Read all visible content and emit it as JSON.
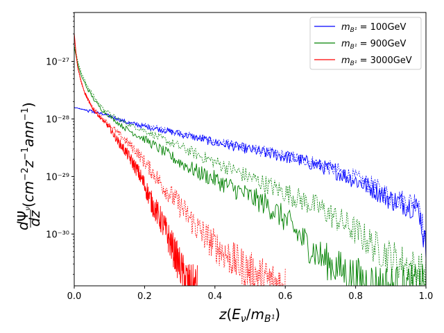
{
  "chart_data": {
    "type": "line",
    "title": "",
    "xlabel": "z(E_ν/m_{B^1})",
    "ylabel": "dΨ_ν/dz (cm^{-2} z^{-1} ann^{-1})",
    "xlim": [
      0.0,
      1.0
    ],
    "ylim_log10": [
      -30.9,
      -26.15
    ],
    "yscale": "log",
    "x_ticks": [
      {
        "value": 0.0,
        "label": "0.0"
      },
      {
        "value": 0.2,
        "label": "0.2"
      },
      {
        "value": 0.4,
        "label": "0.4"
      },
      {
        "value": 0.6,
        "label": "0.6"
      },
      {
        "value": 0.8,
        "label": "0.8"
      },
      {
        "value": 1.0,
        "label": "1.0"
      }
    ],
    "y_ticks": [
      {
        "exp": -27,
        "label": "10⁻²⁷"
      },
      {
        "exp": -28,
        "label": "10⁻²⁸"
      },
      {
        "exp": -29,
        "label": "10⁻²⁹"
      },
      {
        "exp": -30,
        "label": "10⁻³⁰"
      }
    ],
    "legend_position": "top-right",
    "series": [
      {
        "name": "m_{B^1} = 100GeV",
        "label_prefix": "m",
        "label_sub": "B¹",
        "label_suffix": " = 100GeV",
        "color": "#0000ff",
        "solid_log10": [
          [
            0.0,
            -27.8
          ],
          [
            0.05,
            -27.87
          ],
          [
            0.1,
            -27.95
          ],
          [
            0.15,
            -28.06
          ],
          [
            0.2,
            -28.13
          ],
          [
            0.25,
            -28.19
          ],
          [
            0.3,
            -28.26
          ],
          [
            0.35,
            -28.33
          ],
          [
            0.4,
            -28.41
          ],
          [
            0.45,
            -28.47
          ],
          [
            0.5,
            -28.53
          ],
          [
            0.55,
            -28.6
          ],
          [
            0.6,
            -28.66
          ],
          [
            0.65,
            -28.73
          ],
          [
            0.7,
            -28.82
          ],
          [
            0.75,
            -28.93
          ],
          [
            0.8,
            -29.07
          ],
          [
            0.85,
            -29.22
          ],
          [
            0.9,
            -29.4
          ],
          [
            0.95,
            -29.5
          ],
          [
            0.98,
            -29.55
          ],
          [
            1.0,
            -30.3
          ]
        ],
        "dashed_log10": [
          [
            0.0,
            -27.8
          ],
          [
            0.05,
            -27.87
          ],
          [
            0.1,
            -27.94
          ],
          [
            0.15,
            -28.05
          ],
          [
            0.2,
            -28.12
          ],
          [
            0.25,
            -28.18
          ],
          [
            0.3,
            -28.25
          ],
          [
            0.35,
            -28.31
          ],
          [
            0.4,
            -28.39
          ],
          [
            0.45,
            -28.45
          ],
          [
            0.5,
            -28.52
          ],
          [
            0.55,
            -28.58
          ],
          [
            0.6,
            -28.64
          ],
          [
            0.65,
            -28.7
          ],
          [
            0.7,
            -28.79
          ],
          [
            0.75,
            -28.9
          ],
          [
            0.8,
            -29.03
          ],
          [
            0.85,
            -29.17
          ],
          [
            0.9,
            -29.35
          ],
          [
            0.95,
            -29.45
          ],
          [
            0.98,
            -29.4
          ],
          [
            1.0,
            -30.3
          ]
        ]
      },
      {
        "name": "m_{B^1} = 900GeV",
        "label_prefix": "m",
        "label_sub": "B¹",
        "label_suffix": " = 900GeV",
        "color": "#008000",
        "solid_log10": [
          [
            0.0,
            -26.75
          ],
          [
            0.01,
            -27.05
          ],
          [
            0.02,
            -27.25
          ],
          [
            0.04,
            -27.5
          ],
          [
            0.06,
            -27.7
          ],
          [
            0.08,
            -27.85
          ],
          [
            0.1,
            -27.95
          ],
          [
            0.12,
            -28.05
          ],
          [
            0.15,
            -28.18
          ],
          [
            0.2,
            -28.35
          ],
          [
            0.25,
            -28.55
          ],
          [
            0.3,
            -28.75
          ],
          [
            0.35,
            -28.92
          ],
          [
            0.4,
            -29.05
          ],
          [
            0.45,
            -29.2
          ],
          [
            0.5,
            -29.35
          ],
          [
            0.55,
            -29.5
          ],
          [
            0.6,
            -29.75
          ],
          [
            0.65,
            -30.1
          ],
          [
            0.7,
            -30.4
          ],
          [
            0.75,
            -30.6
          ],
          [
            0.8,
            -30.75
          ],
          [
            0.85,
            -30.85
          ],
          [
            0.9,
            -30.9
          ],
          [
            1.0,
            -30.9
          ]
        ],
        "dashed_log10": [
          [
            0.0,
            -26.7
          ],
          [
            0.01,
            -27.0
          ],
          [
            0.02,
            -27.2
          ],
          [
            0.04,
            -27.45
          ],
          [
            0.06,
            -27.65
          ],
          [
            0.08,
            -27.8
          ],
          [
            0.1,
            -27.9
          ],
          [
            0.12,
            -27.98
          ],
          [
            0.15,
            -28.08
          ],
          [
            0.2,
            -28.2
          ],
          [
            0.25,
            -28.35
          ],
          [
            0.3,
            -28.48
          ],
          [
            0.35,
            -28.62
          ],
          [
            0.4,
            -28.75
          ],
          [
            0.45,
            -28.88
          ],
          [
            0.5,
            -29.02
          ],
          [
            0.55,
            -29.15
          ],
          [
            0.6,
            -29.28
          ],
          [
            0.65,
            -29.42
          ],
          [
            0.7,
            -29.55
          ],
          [
            0.75,
            -29.75
          ],
          [
            0.8,
            -29.95
          ],
          [
            0.85,
            -30.2
          ],
          [
            0.9,
            -30.4
          ],
          [
            0.95,
            -30.55
          ],
          [
            1.0,
            -30.7
          ]
        ]
      },
      {
        "name": "m_{B^1} = 3000GeV",
        "label_prefix": "m",
        "label_sub": "B¹",
        "label_suffix": " = 3000GeV",
        "color": "#ff0000",
        "solid_log10": [
          [
            0.0,
            -26.5
          ],
          [
            0.005,
            -26.85
          ],
          [
            0.01,
            -27.1
          ],
          [
            0.02,
            -27.35
          ],
          [
            0.03,
            -27.55
          ],
          [
            0.05,
            -27.8
          ],
          [
            0.07,
            -27.95
          ],
          [
            0.1,
            -28.15
          ],
          [
            0.12,
            -28.35
          ],
          [
            0.15,
            -28.6
          ],
          [
            0.18,
            -28.9
          ],
          [
            0.2,
            -29.15
          ],
          [
            0.22,
            -29.45
          ],
          [
            0.25,
            -29.8
          ],
          [
            0.27,
            -30.1
          ],
          [
            0.29,
            -30.4
          ],
          [
            0.31,
            -30.7
          ],
          [
            0.33,
            -30.9
          ],
          [
            0.35,
            -30.9
          ]
        ],
        "dashed_log10": [
          [
            0.0,
            -26.55
          ],
          [
            0.005,
            -26.88
          ],
          [
            0.01,
            -27.12
          ],
          [
            0.02,
            -27.38
          ],
          [
            0.03,
            -27.55
          ],
          [
            0.05,
            -27.78
          ],
          [
            0.07,
            -27.92
          ],
          [
            0.1,
            -28.1
          ],
          [
            0.12,
            -28.22
          ],
          [
            0.15,
            -28.4
          ],
          [
            0.18,
            -28.58
          ],
          [
            0.2,
            -28.75
          ],
          [
            0.23,
            -28.98
          ],
          [
            0.25,
            -29.15
          ],
          [
            0.3,
            -29.5
          ],
          [
            0.35,
            -29.9
          ],
          [
            0.4,
            -30.2
          ],
          [
            0.45,
            -30.45
          ],
          [
            0.5,
            -30.65
          ],
          [
            0.55,
            -30.8
          ],
          [
            0.6,
            -30.9
          ]
        ]
      }
    ]
  }
}
